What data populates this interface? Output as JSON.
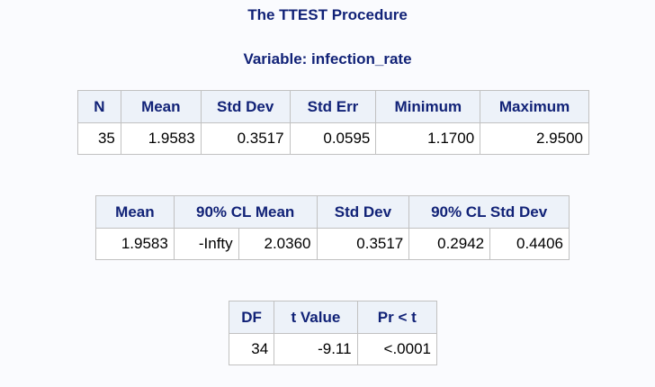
{
  "header": {
    "procedure_title": "The TTEST Procedure",
    "variable_title": "Variable: infection_rate"
  },
  "stats_table": {
    "headers": [
      "N",
      "Mean",
      "Std Dev",
      "Std Err",
      "Minimum",
      "Maximum"
    ],
    "row": [
      "35",
      "1.9583",
      "0.3517",
      "0.0595",
      "1.1700",
      "2.9500"
    ]
  },
  "cl_table": {
    "headers": [
      "Mean",
      "90% CL Mean",
      "Std Dev",
      "90% CL Std Dev"
    ],
    "row": [
      "1.9583",
      "-Infty",
      "2.0360",
      "0.3517",
      "0.2942",
      "0.4406"
    ]
  },
  "test_table": {
    "headers": [
      "DF",
      "t Value",
      "Pr < t"
    ],
    "row": [
      "34",
      "-9.11",
      "<.0001"
    ]
  }
}
